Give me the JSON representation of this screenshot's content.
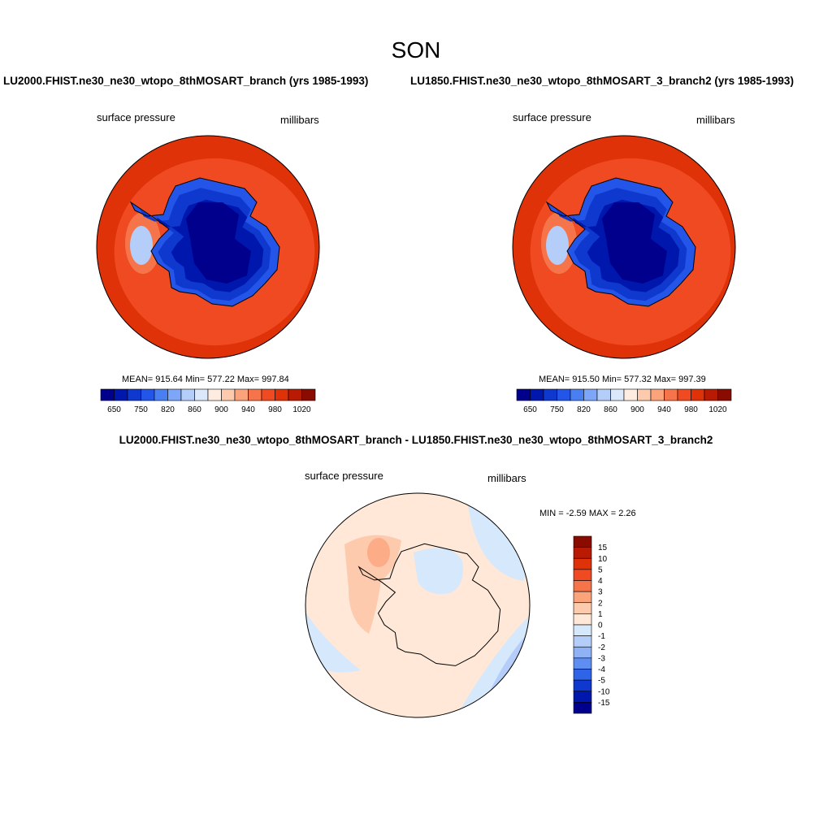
{
  "figure": {
    "season": "SON"
  },
  "panels": [
    {
      "case": "LU2000.FHIST.ne30_ne30_wtopo_8thMOSART_branch (yrs 1985-1993)",
      "left_label": "surface pressure",
      "right_label": "millibars",
      "stats": "MEAN= 915.64  Min= 577.22  Max= 997.84"
    },
    {
      "case": "LU1850.FHIST.ne30_ne30_wtopo_8thMOSART_3_branch2 (yrs 1985-1993)",
      "left_label": "surface pressure",
      "right_label": "millibars",
      "stats": "MEAN= 915.50  Min= 577.32  Max= 997.39"
    },
    {
      "case": "LU2000.FHIST.ne30_ne30_wtopo_8thMOSART_branch - LU1850.FHIST.ne30_ne30_wtopo_8thMOSART_3_branch2",
      "left_label": "surface pressure",
      "right_label": "millibars",
      "stats": "MIN =  -2.59 MAX =   2.26"
    }
  ],
  "chart_data": [
    {
      "type": "heatmap",
      "projection": "south polar stereographic",
      "variable": "surface pressure",
      "units": "millibars",
      "mean": 915.64,
      "min": 577.22,
      "max": 997.84,
      "colorbar": {
        "orientation": "horizontal",
        "tick_labels": [
          "650",
          "750",
          "820",
          "860",
          "900",
          "940",
          "980",
          "1020"
        ],
        "colors": [
          "#00008c",
          "#0017ad",
          "#0f39ce",
          "#2356e8",
          "#4a7ff2",
          "#7ea6f8",
          "#b5cdf9",
          "#dbe8fc",
          "#ffece0",
          "#fdcaad",
          "#fba47c",
          "#f6744a",
          "#f04a22",
          "#e03208",
          "#b81a04",
          "#8a0c00"
        ]
      }
    },
    {
      "type": "heatmap",
      "projection": "south polar stereographic",
      "variable": "surface pressure",
      "units": "millibars",
      "mean": 915.5,
      "min": 577.32,
      "max": 997.39,
      "colorbar": {
        "orientation": "horizontal",
        "tick_labels": [
          "650",
          "750",
          "820",
          "860",
          "900",
          "940",
          "980",
          "1020"
        ],
        "colors": [
          "#00008c",
          "#0017ad",
          "#0f39ce",
          "#2356e8",
          "#4a7ff2",
          "#7ea6f8",
          "#b5cdf9",
          "#dbe8fc",
          "#ffece0",
          "#fdcaad",
          "#fba47c",
          "#f6744a",
          "#f04a22",
          "#e03208",
          "#b81a04",
          "#8a0c00"
        ]
      }
    },
    {
      "type": "heatmap",
      "projection": "south polar stereographic",
      "variable": "surface pressure",
      "units": "millibars",
      "min": -2.59,
      "max": 2.26,
      "colorbar": {
        "orientation": "vertical",
        "tick_labels": [
          "15",
          "10",
          "5",
          "4",
          "3",
          "2",
          "1",
          "0",
          "-1",
          "-2",
          "-3",
          "-4",
          "-5",
          "-10",
          "-15"
        ],
        "colors": [
          "#8a0c00",
          "#b81a04",
          "#e03208",
          "#f04a22",
          "#f6744a",
          "#fba47c",
          "#fdcaad",
          "#ffe8d8",
          "#d6e8fc",
          "#b5cdf9",
          "#8fb2f7",
          "#5f8ef2",
          "#2f64e8",
          "#0f39ce",
          "#0017ad",
          "#00008c"
        ]
      }
    }
  ]
}
